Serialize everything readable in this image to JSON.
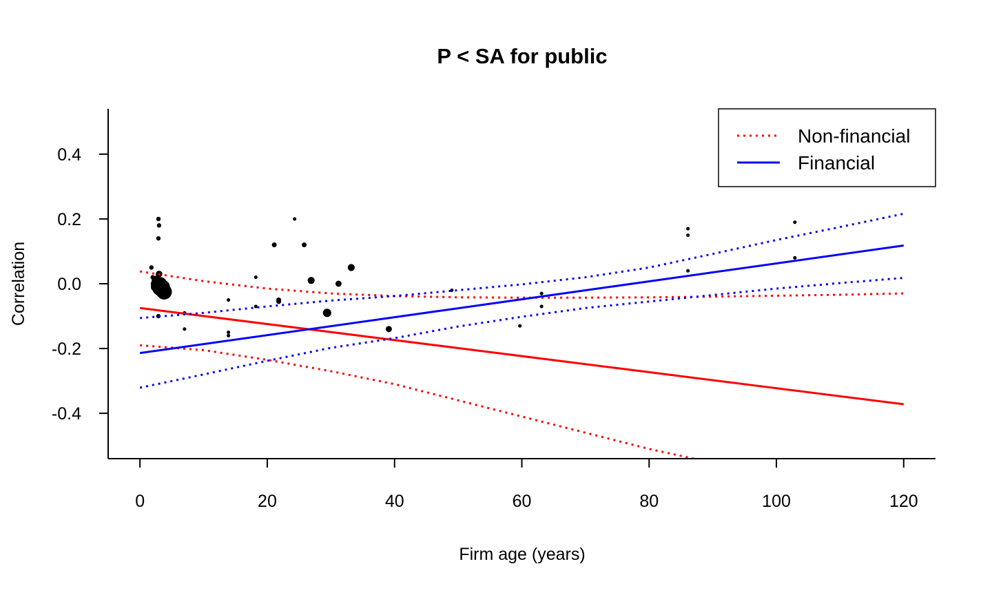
{
  "chart_data": {
    "type": "scatter",
    "title": "P < SA for public",
    "xlabel": "Firm age (years)",
    "ylabel": "Correlation",
    "xlim": [
      -5,
      125
    ],
    "ylim": [
      -0.54,
      0.54
    ],
    "x_ticks": [
      0,
      20,
      40,
      60,
      80,
      100,
      120
    ],
    "x_tick_labels": [
      "0",
      "20",
      "40",
      "60",
      "80",
      "100",
      "120"
    ],
    "y_ticks": [
      -0.4,
      -0.2,
      0.0,
      0.2,
      0.4
    ],
    "y_tick_labels": [
      "-0.4",
      "-0.2",
      "0.0",
      "0.2",
      "0.4"
    ],
    "grid": false,
    "legend": {
      "position": "top-right",
      "entries": [
        {
          "label": "Non-financial",
          "color": "#ff0000",
          "style": "dotted"
        },
        {
          "label": "Financial",
          "color": "#0000ff",
          "style": "solid"
        }
      ]
    },
    "series": [
      {
        "name": "Non-financial",
        "color": "#ff0000",
        "fit": {
          "x": [
            0,
            120
          ],
          "y": [
            -0.075,
            -0.372
          ]
        },
        "ci_upper": {
          "x": [
            0,
            10,
            20,
            30,
            40,
            50,
            60,
            70,
            80,
            90,
            100,
            110,
            120
          ],
          "y": [
            0.038,
            0.008,
            -0.015,
            -0.03,
            -0.038,
            -0.042,
            -0.043,
            -0.043,
            -0.042,
            -0.04,
            -0.037,
            -0.034,
            -0.03
          ]
        },
        "ci_lower": {
          "x": [
            0,
            10,
            20,
            30,
            40,
            50,
            60,
            70,
            80,
            87
          ],
          "y": [
            -0.19,
            -0.205,
            -0.235,
            -0.27,
            -0.31,
            -0.36,
            -0.41,
            -0.46,
            -0.51,
            -0.54
          ]
        }
      },
      {
        "name": "Financial",
        "color": "#0000ff",
        "fit": {
          "x": [
            0,
            120
          ],
          "y": [
            -0.214,
            0.118
          ]
        },
        "ci_upper": {
          "x": [
            0,
            10,
            20,
            30,
            40,
            50,
            60,
            70,
            80,
            90,
            100,
            110,
            120
          ],
          "y": [
            -0.106,
            -0.09,
            -0.07,
            -0.052,
            -0.038,
            -0.02,
            -0.002,
            0.02,
            0.05,
            0.092,
            0.135,
            0.175,
            0.216
          ]
        },
        "ci_lower": {
          "x": [
            0,
            10,
            20,
            30,
            40,
            50,
            60,
            70,
            80,
            90,
            100,
            110,
            120
          ],
          "y": [
            -0.321,
            -0.28,
            -0.238,
            -0.198,
            -0.168,
            -0.132,
            -0.102,
            -0.075,
            -0.055,
            -0.035,
            -0.015,
            0.002,
            0.018
          ]
        }
      }
    ],
    "points": [
      {
        "x": 1.8,
        "y": 0.05,
        "size": 1
      },
      {
        "x": 2.0,
        "y": 0.02,
        "size": 1
      },
      {
        "x": 2.2,
        "y": 0.0,
        "size": 1.5
      },
      {
        "x": 2.4,
        "y": -0.01,
        "size": 2
      },
      {
        "x": 2.6,
        "y": 0.01,
        "size": 2.2
      },
      {
        "x": 2.8,
        "y": -0.005,
        "size": 2.5
      },
      {
        "x": 3.0,
        "y": -0.015,
        "size": 3
      },
      {
        "x": 3.2,
        "y": 0.0,
        "size": 3
      },
      {
        "x": 3.4,
        "y": -0.02,
        "size": 3.2
      },
      {
        "x": 3.6,
        "y": -0.01,
        "size": 3.2
      },
      {
        "x": 3.8,
        "y": -0.025,
        "size": 3.5
      },
      {
        "x": 3.0,
        "y": 0.03,
        "size": 1.5
      },
      {
        "x": 2.9,
        "y": 0.2,
        "size": 1
      },
      {
        "x": 3.0,
        "y": 0.18,
        "size": 1
      },
      {
        "x": 2.9,
        "y": 0.14,
        "size": 1
      },
      {
        "x": 2.9,
        "y": -0.1,
        "size": 1
      },
      {
        "x": 7.0,
        "y": -0.09,
        "size": 0.8
      },
      {
        "x": 7.0,
        "y": -0.14,
        "size": 0.8
      },
      {
        "x": 13.9,
        "y": -0.05,
        "size": 0.8
      },
      {
        "x": 13.9,
        "y": -0.15,
        "size": 0.8
      },
      {
        "x": 13.9,
        "y": -0.16,
        "size": 0.8
      },
      {
        "x": 18.2,
        "y": 0.02,
        "size": 0.8
      },
      {
        "x": 18.2,
        "y": -0.07,
        "size": 0.8
      },
      {
        "x": 21.1,
        "y": 0.12,
        "size": 1.1
      },
      {
        "x": 21.8,
        "y": -0.05,
        "size": 1.1
      },
      {
        "x": 21.8,
        "y": -0.055,
        "size": 1.1
      },
      {
        "x": 24.3,
        "y": 0.2,
        "size": 0.8
      },
      {
        "x": 25.8,
        "y": 0.12,
        "size": 1.1
      },
      {
        "x": 26.9,
        "y": 0.01,
        "size": 1.6
      },
      {
        "x": 29.4,
        "y": -0.09,
        "size": 1.9
      },
      {
        "x": 31.2,
        "y": 0.0,
        "size": 1.4
      },
      {
        "x": 33.2,
        "y": 0.05,
        "size": 1.6
      },
      {
        "x": 39.1,
        "y": -0.14,
        "size": 1.4
      },
      {
        "x": 49.0,
        "y": -0.02,
        "size": 0.8
      },
      {
        "x": 59.7,
        "y": -0.13,
        "size": 0.8
      },
      {
        "x": 63.1,
        "y": -0.03,
        "size": 0.8
      },
      {
        "x": 63.1,
        "y": -0.07,
        "size": 0.8
      },
      {
        "x": 86.1,
        "y": 0.17,
        "size": 0.8
      },
      {
        "x": 86.1,
        "y": 0.15,
        "size": 0.8
      },
      {
        "x": 86.1,
        "y": 0.04,
        "size": 0.8
      },
      {
        "x": 102.9,
        "y": 0.19,
        "size": 0.8
      },
      {
        "x": 102.9,
        "y": 0.08,
        "size": 0.8
      }
    ]
  }
}
